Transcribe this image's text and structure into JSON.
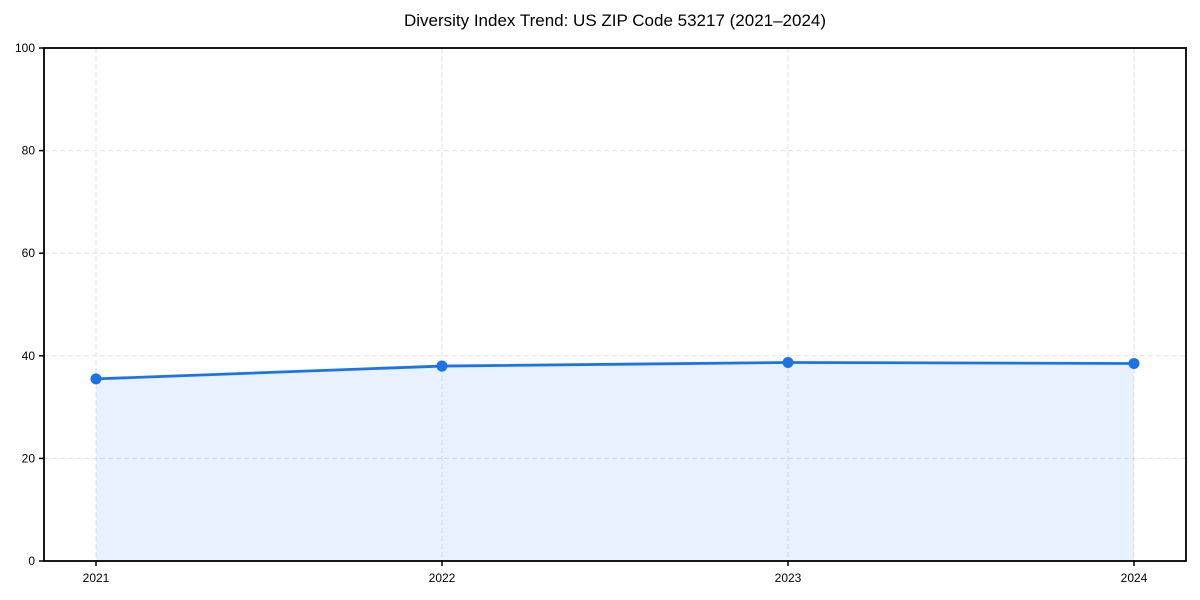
{
  "page": {
    "background": "#ffffff"
  },
  "chart_data": {
    "type": "area",
    "title": "Diversity Index Trend: US ZIP Code 53217 (2021–2024)",
    "x": [
      2021,
      2022,
      2023,
      2024
    ],
    "xtick_labels": [
      "2021",
      "2022",
      "2023",
      "2024"
    ],
    "series": [
      {
        "name": "Diversity Index",
        "values": [
          35.5,
          38.0,
          38.7,
          38.5
        ]
      }
    ],
    "xlabel": "",
    "ylabel": "",
    "ylim": [
      0,
      100
    ],
    "yticks": [
      0,
      20,
      40,
      60,
      80,
      100
    ],
    "grid": "dashed",
    "legend": "none",
    "colors": {
      "line": "#1a73e8",
      "marker": "#1a73e8",
      "fill": "rgba(26,115,232,0.10)",
      "grid": "#e0e0e0",
      "axis": "#000000",
      "text": "#000000"
    }
  }
}
